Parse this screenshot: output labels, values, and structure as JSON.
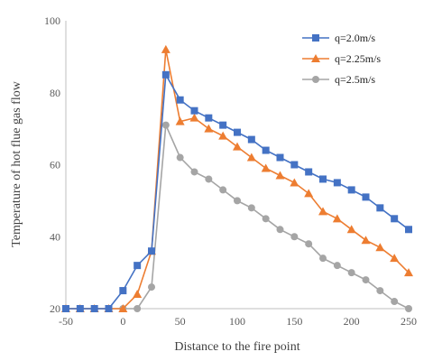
{
  "chart_data": {
    "type": "line",
    "xlabel": "Distance to the fire point",
    "ylabel": "Temperature of hot flue gas flow",
    "xlim": [
      -50,
      250
    ],
    "ylim": [
      20,
      100
    ],
    "xticks": [
      -50,
      0,
      50,
      100,
      150,
      200,
      250
    ],
    "yticks": [
      20,
      40,
      60,
      80,
      100
    ],
    "grid": false,
    "legend": "top-right",
    "series": [
      {
        "name": "q=2.0m/s",
        "color": "#4472c4",
        "marker": "square",
        "x": [
          -50,
          -37.5,
          -25,
          -12.5,
          0,
          12.5,
          25,
          37.5,
          50,
          62.5,
          75,
          87.5,
          100,
          112.5,
          125,
          137.5,
          150,
          162.5,
          175,
          187.5,
          200,
          212.5,
          225,
          237.5,
          250
        ],
        "y": [
          20,
          20,
          20,
          20,
          25,
          32,
          36,
          85,
          78,
          75,
          73,
          71,
          69,
          67,
          64,
          62,
          60,
          58,
          56,
          55,
          53,
          51,
          48,
          45,
          42
        ]
      },
      {
        "name": "q=2.25m/s",
        "color": "#ed7d31",
        "marker": "triangle",
        "x": [
          -50,
          -37.5,
          -25,
          -12.5,
          0,
          12.5,
          25,
          37.5,
          50,
          62.5,
          75,
          87.5,
          100,
          112.5,
          125,
          137.5,
          150,
          162.5,
          175,
          187.5,
          200,
          212.5,
          225,
          237.5,
          250
        ],
        "y": [
          20,
          20,
          20,
          20,
          20,
          24,
          36,
          92,
          72,
          73,
          70,
          68,
          65,
          62,
          59,
          57,
          55,
          52,
          47,
          45,
          42,
          39,
          37,
          34,
          30
        ]
      },
      {
        "name": "q=2.5m/s",
        "color": "#a5a5a5",
        "marker": "circle",
        "x": [
          -50,
          -37.5,
          -25,
          -12.5,
          0,
          12.5,
          25,
          37.5,
          50,
          62.5,
          75,
          87.5,
          100,
          112.5,
          125,
          137.5,
          150,
          162.5,
          175,
          187.5,
          200,
          212.5,
          225,
          237.5,
          250
        ],
        "y": [
          20,
          20,
          20,
          20,
          20,
          20,
          26,
          71,
          62,
          58,
          56,
          53,
          50,
          48,
          45,
          42,
          40,
          38,
          34,
          32,
          30,
          28,
          25,
          22,
          20
        ]
      }
    ]
  }
}
